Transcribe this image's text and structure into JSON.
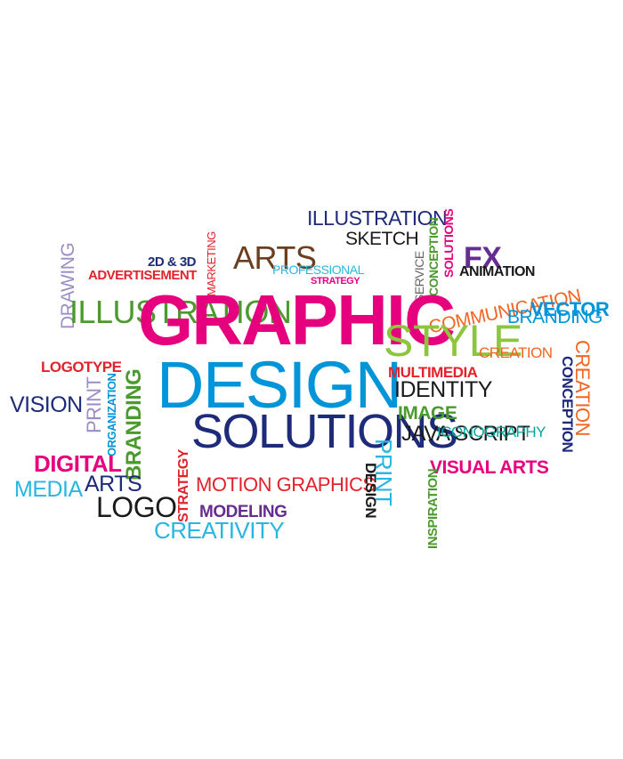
{
  "colors": {
    "magenta": "#e6007e",
    "blue": "#0095d9",
    "navy": "#1d2b7a",
    "green": "#4b9a2d",
    "lime": "#8cc63f",
    "red": "#e3222b",
    "orange": "#f26522",
    "brown": "#6b3e1f",
    "purple": "#662d91",
    "teal": "#00a99d",
    "cyan": "#29b6e0",
    "black": "#1a1a1a",
    "lavender": "#9b8ec4",
    "gray": "#666666"
  },
  "words": {
    "graphic": "GRAPHIC",
    "design": "DESIGN",
    "solutions": "SOLUTIONS",
    "illustration_green": "ILLUSTRATION",
    "illustration_top": "ILLUSTRATION",
    "arts_top": "ARTS",
    "sketch": "SKETCH",
    "style": "STYLE",
    "communication": "COMMUNICATION",
    "vector": "VECTOR",
    "branding_right": "BRANDING",
    "creation_mid": "CREATION",
    "multimedia": "MULTIMEDIA",
    "identity": "IDENTITY",
    "image": "IMAGE",
    "java_script": "JAVA SCRIPT",
    "iconography": "ICONOGRAPHY",
    "visual_arts": "VISUAL ARTS",
    "creation_vertical": "CREATION",
    "conception_vertical": "CONCEPTION",
    "fx": "FX",
    "animation": "ANIMATION",
    "solutions_vertical": "SOLUTIONS",
    "conception_small": "CONCEPTION",
    "service": "SERVICE",
    "professional": "PROFESSIONAL",
    "strategy_small": "STRATEGY",
    "marketing": "MARKETING",
    "two_d_three_d": "2D & 3D",
    "advertisement": "ADVERTISEMENT",
    "drawing": "DRAWING",
    "logotype": "LOGOTYPE",
    "vision": "VISION",
    "print_left": "PRINT",
    "organization": "ORGANIZATION",
    "branding_left": "BRANDING",
    "digital": "DIGITAL",
    "media": "MEDIA",
    "arts_left": "ARTS",
    "logo": "LOGO",
    "strategy_vertical": "STRATEGY",
    "motion_graphics": "MOTION GRAPHICS",
    "modeling": "MODELING",
    "creativity": "CREATIVITY",
    "design_vertical": "DESIGN",
    "print_vertical": "PRINT",
    "inspiration": "INSPIRATION"
  }
}
